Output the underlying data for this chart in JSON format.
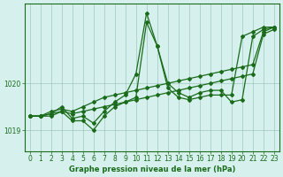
{
  "title": "Graphe pression niveau de la mer (hPa)",
  "background_color": "#d6f0ed",
  "grid_color": "#a0c8c0",
  "line_color": "#1a6b1a",
  "xlim": [
    -0.5,
    23.5
  ],
  "ylim": [
    1018.55,
    1021.7
  ],
  "yticks": [
    1019,
    1020
  ],
  "xticks": [
    0,
    1,
    2,
    3,
    4,
    5,
    6,
    7,
    8,
    9,
    10,
    11,
    12,
    13,
    14,
    15,
    16,
    17,
    18,
    19,
    20,
    21,
    22,
    23
  ],
  "series": [
    [
      1019.3,
      1019.3,
      1019.3,
      1019.4,
      1019.2,
      1019.2,
      1019.0,
      1019.3,
      1019.5,
      1019.6,
      1019.7,
      1021.3,
      1020.8,
      1019.9,
      1019.7,
      1019.65,
      1019.7,
      1019.75,
      1019.75,
      1019.75,
      1021.0,
      1021.1,
      1021.2,
      1021.2
    ],
    [
      1019.3,
      1019.3,
      1019.35,
      1019.5,
      1019.25,
      1019.3,
      1019.15,
      1019.4,
      1019.6,
      1019.75,
      1020.2,
      1021.5,
      1020.8,
      1020.0,
      1019.8,
      1019.7,
      1019.8,
      1019.85,
      1019.85,
      1019.6,
      1019.65,
      1021.0,
      1021.15,
      1021.2
    ],
    [
      1019.3,
      1019.3,
      1019.4,
      1019.45,
      1019.4,
      1019.5,
      1019.6,
      1019.7,
      1019.75,
      1019.8,
      1019.85,
      1019.9,
      1019.95,
      1020.0,
      1020.05,
      1020.1,
      1020.15,
      1020.2,
      1020.25,
      1020.3,
      1020.35,
      1020.4,
      1021.1,
      1021.2
    ],
    [
      1019.3,
      1019.3,
      1019.35,
      1019.4,
      1019.35,
      1019.4,
      1019.45,
      1019.5,
      1019.55,
      1019.6,
      1019.65,
      1019.7,
      1019.75,
      1019.8,
      1019.85,
      1019.9,
      1019.95,
      1020.0,
      1020.05,
      1020.1,
      1020.15,
      1020.2,
      1021.05,
      1021.15
    ]
  ]
}
